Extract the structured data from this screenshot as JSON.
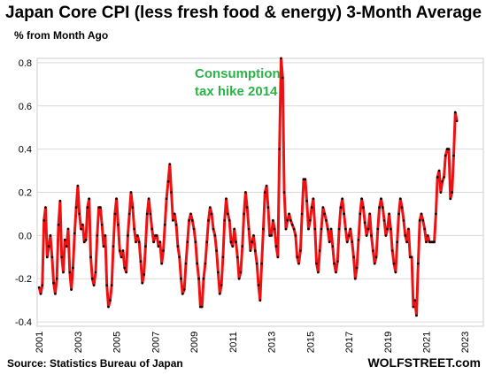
{
  "chart_data": {
    "type": "line",
    "title": "Japan Core CPI (less fresh food & energy) 3-Month Average",
    "subtitle": "% from Month Ago",
    "source": "Source: Statistics Bureau of Japan",
    "brand": "WOLFSTREET.com",
    "annotation": {
      "lines": [
        "Consumption",
        "tax hike 2014"
      ],
      "color": "#2db24a"
    },
    "x_start": 2001.0,
    "x_step": 0.08333,
    "xlim": [
      2000.9,
      2023.95
    ],
    "ylim": [
      -0.42,
      0.82
    ],
    "yticks": [
      -0.4,
      -0.2,
      0.0,
      0.2,
      0.4,
      0.6,
      0.8
    ],
    "ytick_labels": [
      "-0.4",
      "-0.2",
      "0.0",
      "0.2",
      "0.4",
      "0.6",
      "0.8"
    ],
    "xticks": [
      2001,
      2003,
      2005,
      2007,
      2009,
      2011,
      2013,
      2015,
      2017,
      2019,
      2021,
      2023
    ],
    "xtick_labels": [
      "2001",
      "2003",
      "2005",
      "2007",
      "2009",
      "2011",
      "2013",
      "2015",
      "2017",
      "2019",
      "2021",
      "2023"
    ],
    "grid": {
      "horizontal": true,
      "vertical": false
    },
    "series": [
      {
        "line_color": "#ee1111",
        "marker_color": "#000000",
        "values": [
          -0.24,
          -0.27,
          -0.23,
          0.07,
          0.13,
          -0.1,
          -0.05,
          0.0,
          -0.1,
          -0.22,
          -0.27,
          -0.2,
          0.05,
          0.16,
          -0.1,
          -0.17,
          -0.02,
          -0.05,
          0.03,
          -0.17,
          -0.25,
          -0.15,
          0.01,
          0.13,
          0.23,
          0.1,
          0.03,
          0.05,
          -0.03,
          -0.02,
          0.13,
          0.17,
          -0.1,
          -0.2,
          -0.23,
          -0.17,
          0.0,
          0.13,
          0.13,
          0.05,
          -0.05,
          0.0,
          -0.23,
          -0.33,
          -0.3,
          -0.23,
          -0.05,
          0.1,
          0.17,
          0.05,
          -0.07,
          -0.1,
          -0.07,
          -0.15,
          -0.17,
          0.0,
          0.1,
          0.2,
          0.13,
          0.03,
          -0.03,
          0.0,
          -0.03,
          -0.12,
          -0.22,
          -0.18,
          -0.05,
          0.1,
          0.17,
          0.1,
          0.03,
          -0.03,
          0.0,
          0.0,
          -0.05,
          -0.03,
          -0.13,
          -0.07,
          0.05,
          0.17,
          0.25,
          0.33,
          0.2,
          0.07,
          0.1,
          0.05,
          -0.05,
          -0.1,
          -0.2,
          -0.27,
          -0.25,
          -0.13,
          -0.03,
          0.07,
          0.1,
          0.07,
          0.03,
          -0.03,
          -0.13,
          -0.2,
          -0.33,
          -0.33,
          -0.2,
          -0.13,
          -0.03,
          0.07,
          0.13,
          0.1,
          0.03,
          0.0,
          -0.07,
          -0.17,
          -0.27,
          -0.23,
          -0.1,
          0.07,
          0.17,
          0.1,
          0.07,
          -0.03,
          -0.05,
          0.03,
          -0.03,
          -0.1,
          -0.2,
          -0.17,
          -0.05,
          0.1,
          0.2,
          0.13,
          0.03,
          -0.07,
          -0.03,
          0.0,
          -0.07,
          -0.13,
          -0.23,
          -0.3,
          -0.13,
          0.03,
          0.2,
          0.23,
          0.13,
          0.0,
          0.0,
          0.07,
          0.03,
          -0.05,
          -0.1,
          0.4,
          0.82,
          0.73,
          0.2,
          0.03,
          0.07,
          0.1,
          0.07,
          0.05,
          0.03,
          0.0,
          -0.1,
          -0.13,
          -0.07,
          0.1,
          0.26,
          0.26,
          0.16,
          0.03,
          0.07,
          0.13,
          0.17,
          0.03,
          -0.13,
          -0.17,
          -0.07,
          0.03,
          0.13,
          0.1,
          0.07,
          0.03,
          -0.03,
          0.03,
          -0.05,
          -0.13,
          -0.17,
          -0.12,
          0.03,
          0.13,
          0.17,
          0.1,
          0.03,
          -0.03,
          0.0,
          0.03,
          -0.03,
          -0.1,
          -0.2,
          -0.15,
          -0.02,
          0.1,
          0.17,
          0.13,
          0.06,
          0.0,
          0.03,
          0.1,
          0.0,
          -0.07,
          -0.13,
          -0.1,
          0.03,
          0.13,
          0.17,
          0.13,
          0.07,
          0.0,
          0.03,
          0.1,
          0.03,
          -0.07,
          -0.13,
          -0.17,
          -0.03,
          0.1,
          0.17,
          0.13,
          0.07,
          0.0,
          -0.03,
          0.03,
          -0.1,
          -0.1,
          -0.33,
          -0.3,
          -0.37,
          -0.13,
          0.07,
          0.1,
          0.07,
          0.03,
          -0.03,
          0.0,
          -0.03,
          -0.03,
          -0.03,
          -0.03,
          0.1,
          0.27,
          0.3,
          0.2,
          0.25,
          0.27,
          0.37,
          0.4,
          0.4,
          0.17,
          0.2,
          0.37,
          0.57,
          0.53
        ]
      }
    ]
  }
}
